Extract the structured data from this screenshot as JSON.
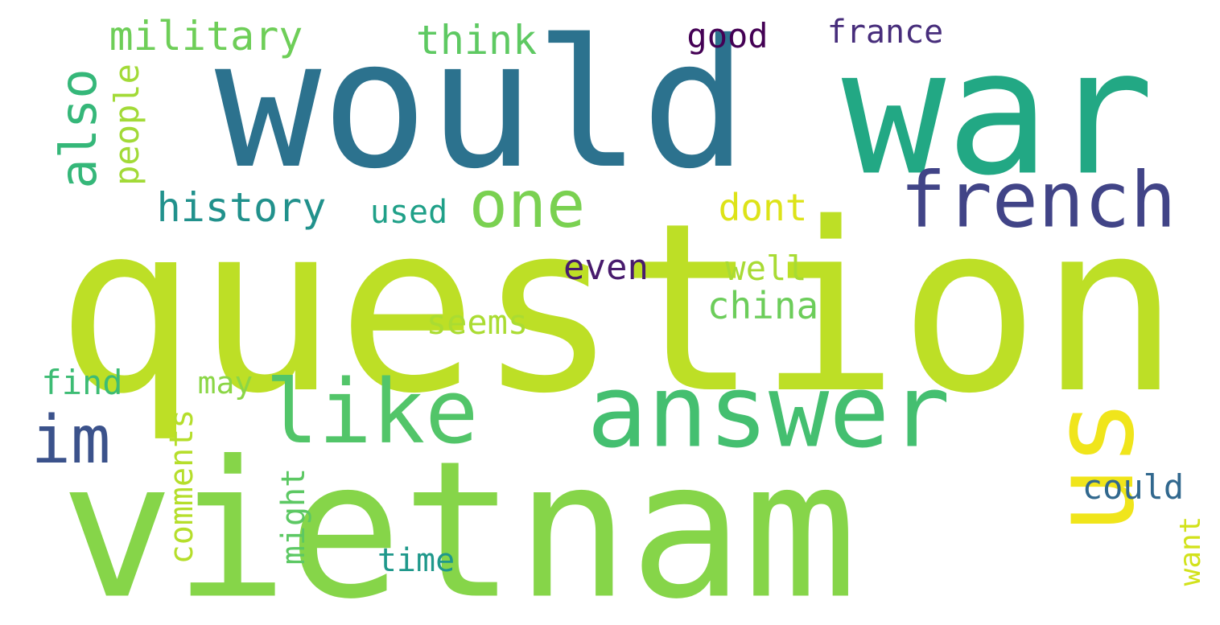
{
  "words": [
    {
      "text": "question",
      "color": "#bddf26",
      "rotated": false
    },
    {
      "text": "would",
      "color": "#2c728e",
      "rotated": false
    },
    {
      "text": "war",
      "color": "#22a884",
      "rotated": false
    },
    {
      "text": "vietnam",
      "color": "#86d549",
      "rotated": false
    },
    {
      "text": "answer",
      "color": "#44bf70",
      "rotated": false
    },
    {
      "text": "us",
      "color": "#f0e51b",
      "rotated": true
    },
    {
      "text": "like",
      "color": "#52c569",
      "rotated": false
    },
    {
      "text": "french",
      "color": "#414487",
      "rotated": false
    },
    {
      "text": "one",
      "color": "#7ad151",
      "rotated": false
    },
    {
      "text": "also",
      "color": "#35b779",
      "rotated": true
    },
    {
      "text": "im",
      "color": "#3b528b",
      "rotated": false
    },
    {
      "text": "military",
      "color": "#6ece58",
      "rotated": false
    },
    {
      "text": "think",
      "color": "#5ec962",
      "rotated": false
    },
    {
      "text": "good",
      "color": "#440154",
      "rotated": false
    },
    {
      "text": "france",
      "color": "#472d7b",
      "rotated": false
    },
    {
      "text": "people",
      "color": "#a2da37",
      "rotated": true
    },
    {
      "text": "history",
      "color": "#21918c",
      "rotated": false
    },
    {
      "text": "used",
      "color": "#1fa088",
      "rotated": false
    },
    {
      "text": "dont",
      "color": "#dde318",
      "rotated": false
    },
    {
      "text": "even",
      "color": "#481b6d",
      "rotated": false
    },
    {
      "text": "well",
      "color": "#a8db34",
      "rotated": false
    },
    {
      "text": "china",
      "color": "#6ccd5a",
      "rotated": false
    },
    {
      "text": "seems",
      "color": "#aadc32",
      "rotated": false
    },
    {
      "text": "find",
      "color": "#3dbc74",
      "rotated": false
    },
    {
      "text": "may",
      "color": "#8bd646",
      "rotated": false
    },
    {
      "text": "comments",
      "color": "#b5de2b",
      "rotated": true
    },
    {
      "text": "might",
      "color": "#5cc863",
      "rotated": true
    },
    {
      "text": "time",
      "color": "#1f988b",
      "rotated": false
    },
    {
      "text": "could",
      "color": "#31688e",
      "rotated": false
    },
    {
      "text": "want",
      "color": "#d2e21b",
      "rotated": true
    }
  ]
}
